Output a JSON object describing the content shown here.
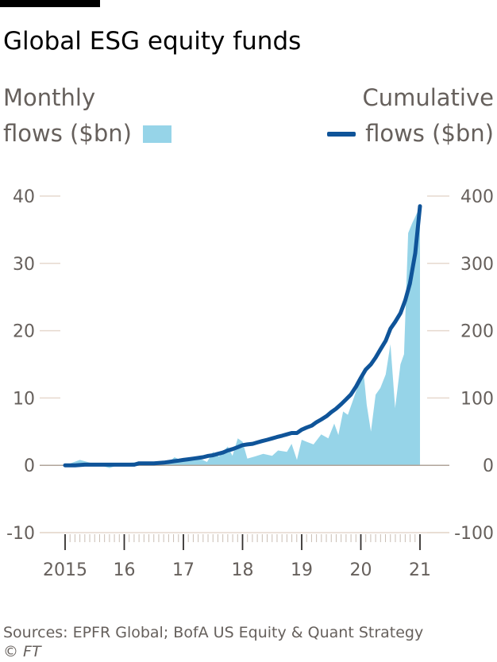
{
  "title": "Global ESG equity funds",
  "legend": {
    "left_line1": "Monthly",
    "left_line2": "flows ($bn)",
    "right_line1": "Cumulative",
    "right_line2": "flows ($bn)"
  },
  "footer": {
    "source": "Sources: EPFR Global; BofA US Equity & Quant Strategy",
    "copyright": "© FT"
  },
  "colors": {
    "monthly_area": "#96d4e8",
    "cumulative_line": "#0f5499",
    "gridline": "#e6d9ce",
    "zero_line": "#b0a499",
    "tick_text": "#66605c"
  },
  "chart_data": {
    "type": "area",
    "title": "Global ESG equity funds",
    "x_tick_labels": [
      "2015",
      "16",
      "17",
      "18",
      "19",
      "20",
      "21"
    ],
    "x_tick_years": [
      2015,
      2016,
      2017,
      2018,
      2019,
      2020,
      2021
    ],
    "y_left": {
      "label": "Monthly flows ($bn)",
      "range": [
        -10,
        40
      ],
      "ticks": [
        40,
        30,
        20,
        10,
        0,
        -10
      ]
    },
    "y_right": {
      "label": "Cumulative flows ($bn)",
      "range": [
        -100,
        400
      ],
      "ticks": [
        400,
        300,
        200,
        100,
        0,
        -100
      ]
    },
    "grid": true,
    "series": [
      {
        "name": "Monthly flows ($bn)",
        "type": "area",
        "axis": "left",
        "points": [
          [
            2015.0,
            0.0
          ],
          [
            2015.25,
            0.8
          ],
          [
            2015.5,
            0.2
          ],
          [
            2015.75,
            -0.4
          ],
          [
            2016.0,
            0.3
          ],
          [
            2016.25,
            0.5
          ],
          [
            2016.5,
            0.2
          ],
          [
            2016.75,
            0.4
          ],
          [
            2016.85,
            1.2
          ],
          [
            2017.0,
            0.6
          ],
          [
            2017.1,
            1.0
          ],
          [
            2017.25,
            1.1
          ],
          [
            2017.4,
            0.5
          ],
          [
            2017.5,
            2.0
          ],
          [
            2017.6,
            1.3
          ],
          [
            2017.75,
            2.8
          ],
          [
            2017.83,
            1.4
          ],
          [
            2017.92,
            4.0
          ],
          [
            2018.0,
            3.5
          ],
          [
            2018.08,
            1.0
          ],
          [
            2018.2,
            1.3
          ],
          [
            2018.35,
            1.7
          ],
          [
            2018.5,
            1.4
          ],
          [
            2018.6,
            2.2
          ],
          [
            2018.75,
            2.0
          ],
          [
            2018.83,
            3.2
          ],
          [
            2018.92,
            0.8
          ],
          [
            2019.0,
            3.8
          ],
          [
            2019.08,
            3.5
          ],
          [
            2019.2,
            3.1
          ],
          [
            2019.33,
            4.6
          ],
          [
            2019.45,
            4.0
          ],
          [
            2019.55,
            6.2
          ],
          [
            2019.62,
            4.5
          ],
          [
            2019.7,
            8.0
          ],
          [
            2019.78,
            7.5
          ],
          [
            2019.88,
            10.0
          ],
          [
            2019.92,
            11.0
          ],
          [
            2020.0,
            12.8
          ],
          [
            2020.05,
            13.5
          ],
          [
            2020.1,
            9.0
          ],
          [
            2020.17,
            5.0
          ],
          [
            2020.25,
            10.5
          ],
          [
            2020.33,
            11.5
          ],
          [
            2020.42,
            13.5
          ],
          [
            2020.5,
            18.0
          ],
          [
            2020.58,
            8.5
          ],
          [
            2020.67,
            15.0
          ],
          [
            2020.73,
            16.5
          ],
          [
            2020.8,
            34.5
          ],
          [
            2020.87,
            36.0
          ],
          [
            2020.95,
            37.5
          ],
          [
            2021.0,
            38.2
          ],
          [
            2021.0,
            0.0
          ]
        ]
      },
      {
        "name": "Cumulative flows ($bn)",
        "type": "line",
        "axis": "right",
        "points": [
          [
            2015.0,
            0
          ],
          [
            2015.17,
            0
          ],
          [
            2015.33,
            1
          ],
          [
            2015.5,
            1
          ],
          [
            2015.75,
            1
          ],
          [
            2016.0,
            1
          ],
          [
            2016.17,
            1
          ],
          [
            2016.25,
            3
          ],
          [
            2016.5,
            3
          ],
          [
            2016.67,
            4
          ],
          [
            2016.75,
            5
          ],
          [
            2016.83,
            6
          ],
          [
            2016.92,
            7
          ],
          [
            2017.0,
            8
          ],
          [
            2017.08,
            9
          ],
          [
            2017.17,
            10
          ],
          [
            2017.25,
            11
          ],
          [
            2017.33,
            12
          ],
          [
            2017.42,
            14
          ],
          [
            2017.5,
            15
          ],
          [
            2017.58,
            17
          ],
          [
            2017.67,
            19
          ],
          [
            2017.75,
            22
          ],
          [
            2017.83,
            24
          ],
          [
            2017.92,
            27
          ],
          [
            2018.0,
            30
          ],
          [
            2018.08,
            31
          ],
          [
            2018.17,
            32
          ],
          [
            2018.25,
            34
          ],
          [
            2018.33,
            36
          ],
          [
            2018.42,
            38
          ],
          [
            2018.5,
            40
          ],
          [
            2018.58,
            42
          ],
          [
            2018.67,
            44
          ],
          [
            2018.75,
            46
          ],
          [
            2018.83,
            48
          ],
          [
            2018.92,
            48
          ],
          [
            2019.0,
            53
          ],
          [
            2019.08,
            56
          ],
          [
            2019.17,
            59
          ],
          [
            2019.25,
            64
          ],
          [
            2019.33,
            68
          ],
          [
            2019.42,
            73
          ],
          [
            2019.5,
            79
          ],
          [
            2019.58,
            84
          ],
          [
            2019.67,
            91
          ],
          [
            2019.75,
            98
          ],
          [
            2019.83,
            105
          ],
          [
            2019.92,
            117
          ],
          [
            2020.0,
            130
          ],
          [
            2020.08,
            142
          ],
          [
            2020.17,
            150
          ],
          [
            2020.25,
            160
          ],
          [
            2020.33,
            172
          ],
          [
            2020.42,
            185
          ],
          [
            2020.5,
            203
          ],
          [
            2020.58,
            213
          ],
          [
            2020.67,
            226
          ],
          [
            2020.75,
            245
          ],
          [
            2020.83,
            270
          ],
          [
            2020.92,
            315
          ],
          [
            2021.0,
            385
          ]
        ]
      }
    ]
  }
}
